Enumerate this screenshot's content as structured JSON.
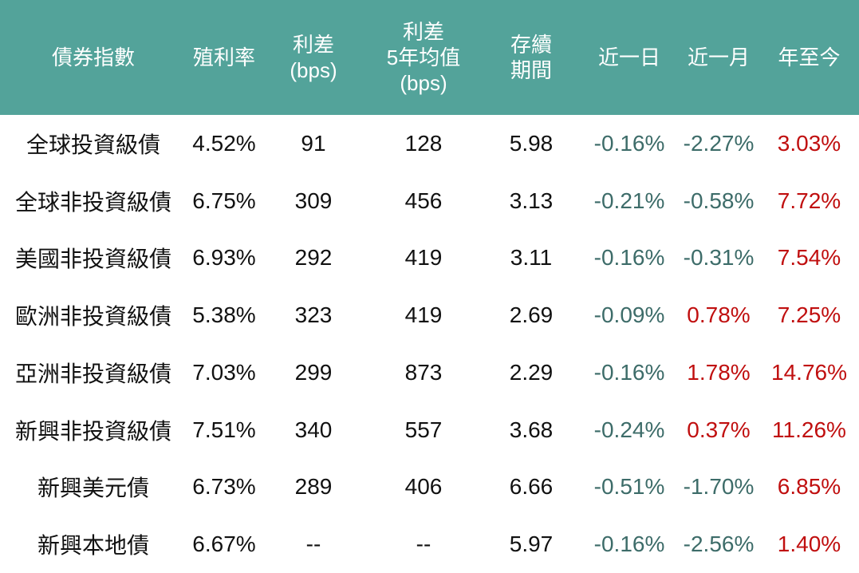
{
  "chart_data": {
    "type": "table",
    "columns": [
      {
        "id": "index",
        "lines": [
          "債券指數"
        ]
      },
      {
        "id": "yield",
        "lines": [
          "殖利率"
        ]
      },
      {
        "id": "spread_bps",
        "lines": [
          "利差",
          "(bps)"
        ]
      },
      {
        "id": "spread_5y_avg_bps",
        "lines": [
          "利差",
          "5年均值",
          "(bps)"
        ]
      },
      {
        "id": "duration",
        "lines": [
          "存續",
          "期間"
        ]
      },
      {
        "id": "chg_1d",
        "lines": [
          "近一日"
        ]
      },
      {
        "id": "chg_1m",
        "lines": [
          "近一月"
        ]
      },
      {
        "id": "chg_ytd",
        "lines": [
          "年至今"
        ]
      }
    ],
    "rows": [
      {
        "index": "全球投資級債",
        "yield": "4.52%",
        "spread_bps": "91",
        "spread_5y_avg_bps": "128",
        "duration": "5.98",
        "chg_1d": {
          "text": "-0.16%",
          "tone": "down"
        },
        "chg_1m": {
          "text": "-2.27%",
          "tone": "down"
        },
        "chg_ytd": {
          "text": "3.03%",
          "tone": "up"
        }
      },
      {
        "index": "全球非投資級債",
        "yield": "6.75%",
        "spread_bps": "309",
        "spread_5y_avg_bps": "456",
        "duration": "3.13",
        "chg_1d": {
          "text": "-0.21%",
          "tone": "down"
        },
        "chg_1m": {
          "text": "-0.58%",
          "tone": "down"
        },
        "chg_ytd": {
          "text": "7.72%",
          "tone": "up"
        }
      },
      {
        "index": "美國非投資級債",
        "yield": "6.93%",
        "spread_bps": "292",
        "spread_5y_avg_bps": "419",
        "duration": "3.11",
        "chg_1d": {
          "text": "-0.16%",
          "tone": "down"
        },
        "chg_1m": {
          "text": "-0.31%",
          "tone": "down"
        },
        "chg_ytd": {
          "text": "7.54%",
          "tone": "up"
        }
      },
      {
        "index": "歐洲非投資級債",
        "yield": "5.38%",
        "spread_bps": "323",
        "spread_5y_avg_bps": "419",
        "duration": "2.69",
        "chg_1d": {
          "text": "-0.09%",
          "tone": "down"
        },
        "chg_1m": {
          "text": "0.78%",
          "tone": "up"
        },
        "chg_ytd": {
          "text": "7.25%",
          "tone": "up"
        }
      },
      {
        "index": "亞洲非投資級債",
        "yield": "7.03%",
        "spread_bps": "299",
        "spread_5y_avg_bps": "873",
        "duration": "2.29",
        "chg_1d": {
          "text": "-0.16%",
          "tone": "down"
        },
        "chg_1m": {
          "text": "1.78%",
          "tone": "up"
        },
        "chg_ytd": {
          "text": "14.76%",
          "tone": "up"
        }
      },
      {
        "index": "新興非投資級債",
        "yield": "7.51%",
        "spread_bps": "340",
        "spread_5y_avg_bps": "557",
        "duration": "3.68",
        "chg_1d": {
          "text": "-0.24%",
          "tone": "down"
        },
        "chg_1m": {
          "text": "0.37%",
          "tone": "up"
        },
        "chg_ytd": {
          "text": "11.26%",
          "tone": "up"
        }
      },
      {
        "index": "新興美元債",
        "yield": "6.73%",
        "spread_bps": "289",
        "spread_5y_avg_bps": "406",
        "duration": "6.66",
        "chg_1d": {
          "text": "-0.51%",
          "tone": "down"
        },
        "chg_1m": {
          "text": "-1.70%",
          "tone": "down"
        },
        "chg_ytd": {
          "text": "6.85%",
          "tone": "up"
        }
      },
      {
        "index": "新興本地債",
        "yield": "6.67%",
        "spread_bps": "--",
        "spread_5y_avg_bps": "--",
        "duration": "5.97",
        "chg_1d": {
          "text": "-0.16%",
          "tone": "down"
        },
        "chg_1m": {
          "text": "-2.56%",
          "tone": "down"
        },
        "chg_ytd": {
          "text": "1.40%",
          "tone": "up"
        }
      }
    ]
  },
  "colors": {
    "header_bg": "#53a39a",
    "header_text": "#ffffff",
    "negative_change": "#3d6c69",
    "positive_change": "#c00f0f",
    "body_text": "#111111",
    "background": "#ffffff"
  }
}
